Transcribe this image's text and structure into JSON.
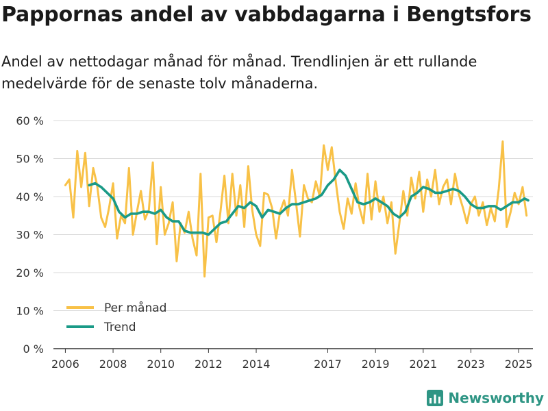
{
  "title": "Pappornas andel av vabbdagarna i Bengtsfors",
  "subtitle": "Andel av nettodagar månad för månad. Trendlinjen är ett rullande medelvärde för de senaste tolv månaderna.",
  "brand": {
    "name": "Newsworthy",
    "icon": "chart-bar-logo-icon"
  },
  "colors": {
    "monthly": "#f8c147",
    "trend": "#1a9a87",
    "grid": "#d9d9d9",
    "axis": "#333333",
    "text": "#333333"
  },
  "chart_data": {
    "type": "line",
    "title": "Pappornas andel av vabbdagarna i Bengtsfors",
    "xlabel": "",
    "ylabel": "",
    "ylim": [
      0,
      60
    ],
    "xlim": [
      2005.5,
      2025.6
    ],
    "y_ticks": [
      0,
      10,
      20,
      30,
      40,
      50,
      60
    ],
    "y_tick_labels": [
      "0 %",
      "10 %",
      "20 %",
      "30 %",
      "40 %",
      "50 %",
      "60 %"
    ],
    "x_ticks": [
      2006,
      2008,
      2010,
      2012,
      2014,
      2017,
      2019,
      2021,
      2023,
      2025
    ],
    "x_tick_labels": [
      "2006",
      "2008",
      "2010",
      "2012",
      "2014",
      "2017",
      "2019",
      "2021",
      "2023",
      "2025"
    ],
    "grid": true,
    "legend": {
      "position": "bottom-left",
      "entries": [
        "Per månad",
        "Trend"
      ]
    },
    "series": [
      {
        "name": "Per månad",
        "color": "#f8c147",
        "x": [
          2006.0,
          2006.167,
          2006.333,
          2006.5,
          2006.667,
          2006.833,
          2007.0,
          2007.167,
          2007.333,
          2007.5,
          2007.667,
          2007.833,
          2008.0,
          2008.167,
          2008.333,
          2008.5,
          2008.667,
          2008.833,
          2009.0,
          2009.167,
          2009.333,
          2009.5,
          2009.667,
          2009.833,
          2010.0,
          2010.167,
          2010.333,
          2010.5,
          2010.667,
          2010.833,
          2011.0,
          2011.167,
          2011.333,
          2011.5,
          2011.667,
          2011.833,
          2012.0,
          2012.167,
          2012.333,
          2012.5,
          2012.667,
          2012.833,
          2013.0,
          2013.167,
          2013.333,
          2013.5,
          2013.667,
          2013.833,
          2014.0,
          2014.167,
          2014.333,
          2014.5,
          2014.667,
          2014.833,
          2015.0,
          2015.167,
          2015.333,
          2015.5,
          2015.667,
          2015.833,
          2016.0,
          2016.167,
          2016.333,
          2016.5,
          2016.667,
          2016.833,
          2017.0,
          2017.167,
          2017.333,
          2017.5,
          2017.667,
          2017.833,
          2018.0,
          2018.167,
          2018.333,
          2018.5,
          2018.667,
          2018.833,
          2019.0,
          2019.167,
          2019.333,
          2019.5,
          2019.667,
          2019.833,
          2020.0,
          2020.167,
          2020.333,
          2020.5,
          2020.667,
          2020.833,
          2021.0,
          2021.167,
          2021.333,
          2021.5,
          2021.667,
          2021.833,
          2022.0,
          2022.167,
          2022.333,
          2022.5,
          2022.667,
          2022.833,
          2023.0,
          2023.167,
          2023.333,
          2023.5,
          2023.667,
          2023.833,
          2024.0,
          2024.167,
          2024.333,
          2024.5,
          2024.667,
          2024.833,
          2025.0,
          2025.167,
          2025.333
        ],
        "values": [
          43,
          44.5,
          34.5,
          52,
          42.5,
          51.5,
          37.5,
          47.5,
          43,
          34.5,
          32,
          37,
          43.5,
          29,
          35,
          33,
          47.5,
          30,
          36,
          41.5,
          34,
          36.5,
          49,
          27.5,
          42.5,
          30,
          33,
          38.5,
          23,
          33,
          30.5,
          36,
          29,
          24.5,
          46,
          19,
          34.5,
          35,
          28,
          36,
          45.5,
          33,
          46,
          35,
          43,
          32,
          48,
          36.5,
          30,
          27,
          41,
          40.5,
          37,
          29,
          36,
          39,
          35,
          47,
          38.5,
          29.5,
          43,
          39.5,
          38.5,
          44,
          40,
          53.5,
          47,
          53,
          44,
          36,
          31.5,
          39.5,
          35.5,
          43.5,
          37,
          33,
          46,
          34,
          44,
          36,
          40,
          33,
          38.5,
          25,
          33,
          41.5,
          35,
          45,
          39.5,
          46.5,
          36,
          44.5,
          40,
          47,
          38,
          42.5,
          44.5,
          38,
          46,
          40.5,
          37,
          33,
          38,
          40,
          35,
          38.5,
          32.5,
          37,
          33.5,
          42,
          54.5,
          32,
          36,
          41,
          38,
          42.5,
          35
        ]
      },
      {
        "name": "Trend",
        "color": "#1a9a87",
        "x": [
          2007.0,
          2007.25,
          2007.5,
          2007.75,
          2008.0,
          2008.25,
          2008.5,
          2008.75,
          2009.0,
          2009.25,
          2009.5,
          2009.75,
          2010.0,
          2010.25,
          2010.5,
          2010.75,
          2011.0,
          2011.25,
          2011.5,
          2011.75,
          2012.0,
          2012.25,
          2012.5,
          2012.75,
          2013.0,
          2013.25,
          2013.5,
          2013.75,
          2014.0,
          2014.25,
          2014.5,
          2014.75,
          2015.0,
          2015.25,
          2015.5,
          2015.75,
          2016.0,
          2016.25,
          2016.5,
          2016.75,
          2017.0,
          2017.25,
          2017.5,
          2017.75,
          2018.0,
          2018.25,
          2018.5,
          2018.75,
          2019.0,
          2019.25,
          2019.5,
          2019.75,
          2020.0,
          2020.25,
          2020.5,
          2020.75,
          2021.0,
          2021.25,
          2021.5,
          2021.75,
          2022.0,
          2022.25,
          2022.5,
          2022.75,
          2023.0,
          2023.25,
          2023.5,
          2023.75,
          2024.0,
          2024.25,
          2024.5,
          2024.75,
          2025.0,
          2025.25,
          2025.4
        ],
        "values": [
          43,
          43.5,
          42.5,
          41,
          39.5,
          36,
          34.5,
          35.5,
          35.5,
          36,
          36,
          35.5,
          36.5,
          34.5,
          33.5,
          33.5,
          31,
          30.5,
          30.5,
          30.5,
          30,
          31.5,
          33,
          33.5,
          35.5,
          37.5,
          37,
          38.5,
          37.5,
          34.5,
          36.5,
          36,
          35.5,
          37,
          38,
          38,
          38.5,
          39,
          39.5,
          40.5,
          43,
          44.5,
          47,
          45.5,
          42,
          38.5,
          38,
          38.5,
          39.5,
          38.5,
          37.5,
          35.5,
          34.5,
          36,
          40,
          41,
          42.5,
          42,
          41,
          41,
          41.5,
          42,
          41.5,
          40,
          38,
          37,
          37,
          37.5,
          37.5,
          36.5,
          37.5,
          38.5,
          38.5,
          39.5,
          39
        ]
      }
    ]
  }
}
